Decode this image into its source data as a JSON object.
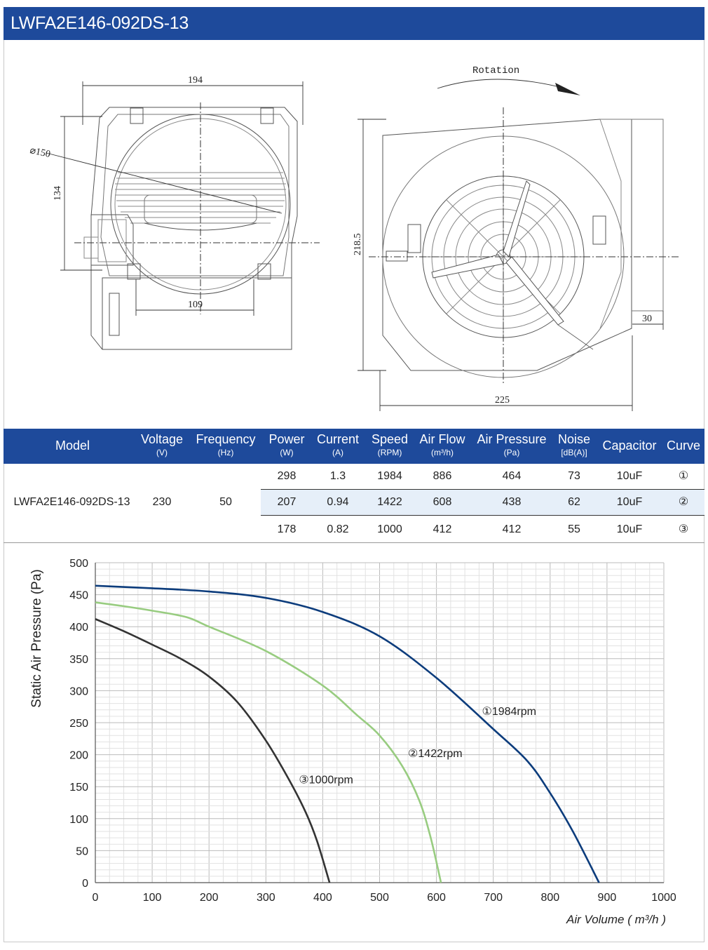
{
  "title": "LWFA2E146-092DS-13",
  "drawing": {
    "dims": {
      "width_top": "194",
      "diameter": "⌀150",
      "height_left": "134",
      "bottom_width": "109",
      "rotation": "Rotation",
      "height_right": "218.5",
      "outlet_depth": "30",
      "total_width": "225"
    }
  },
  "table": {
    "headers": [
      {
        "main": "Model",
        "sub": ""
      },
      {
        "main": "Voltage",
        "sub": "(V)"
      },
      {
        "main": "Frequency",
        "sub": "(Hz)"
      },
      {
        "main": "Power",
        "sub": "(W)"
      },
      {
        "main": "Current",
        "sub": "(A)"
      },
      {
        "main": "Speed",
        "sub": "(RPM)"
      },
      {
        "main": "Air Flow",
        "sub": "(m³/h)"
      },
      {
        "main": "Air Pressure",
        "sub": "(Pa)"
      },
      {
        "main": "Noise",
        "sub": "[dB(A)]"
      },
      {
        "main": "Capacitor",
        "sub": ""
      },
      {
        "main": "Curve",
        "sub": ""
      }
    ],
    "model": "LWFA2E146-092DS-13",
    "voltage": "230",
    "frequency": "50",
    "rows": [
      {
        "power": "298",
        "current": "1.3",
        "speed": "1984",
        "air_flow": "886",
        "air_pressure": "464",
        "noise": "73",
        "capacitor": "10uF",
        "curve": "①"
      },
      {
        "power": "207",
        "current": "0.94",
        "speed": "1422",
        "air_flow": "608",
        "air_pressure": "438",
        "noise": "62",
        "capacitor": "10uF",
        "curve": "②"
      },
      {
        "power": "178",
        "current": "0.82",
        "speed": "1000",
        "air_flow": "412",
        "air_pressure": "412",
        "noise": "55",
        "capacitor": "10uF",
        "curve": "③"
      }
    ]
  },
  "colors": {
    "header_blue": "#1e4a9b",
    "row_highlight": "#e6eff9",
    "curve1": "#0c3c7c",
    "curve2": "#98cc80",
    "curve3": "#333333"
  },
  "chart_data": {
    "type": "line",
    "xlabel": "Air Volume ( m³/h )",
    "ylabel": "Static Air Pressure  (Pa)",
    "xlim": [
      0,
      1000
    ],
    "ylim": [
      0,
      500
    ],
    "xticks": [
      0,
      100,
      200,
      300,
      400,
      500,
      600,
      700,
      800,
      900,
      1000
    ],
    "yticks": [
      0,
      50,
      100,
      150,
      200,
      250,
      300,
      350,
      400,
      450,
      500
    ],
    "grid": true,
    "series": [
      {
        "name": "①1984rpm",
        "color": "#0c3c7c",
        "x": [
          0,
          100,
          200,
          300,
          400,
          500,
          600,
          700,
          760,
          800,
          840,
          886
        ],
        "y": [
          464,
          460,
          455,
          445,
          423,
          385,
          320,
          240,
          190,
          140,
          80,
          0
        ]
      },
      {
        "name": "②1422rpm",
        "color": "#98cc80",
        "x": [
          0,
          50,
          100,
          160,
          200,
          300,
          400,
          460,
          500,
          540,
          570,
          590,
          608
        ],
        "y": [
          438,
          432,
          425,
          415,
          400,
          362,
          308,
          262,
          230,
          182,
          128,
          70,
          0
        ]
      },
      {
        "name": "③1000rpm",
        "color": "#333333",
        "x": [
          0,
          50,
          100,
          150,
          200,
          250,
          300,
          340,
          370,
          390,
          412
        ],
        "y": [
          412,
          393,
          372,
          350,
          322,
          282,
          222,
          162,
          110,
          65,
          0
        ]
      }
    ],
    "annotations": [
      {
        "text": "①1984rpm",
        "x": 680,
        "y": 262
      },
      {
        "text": "②1422rpm",
        "x": 550,
        "y": 196
      },
      {
        "text": "③1000rpm",
        "x": 358,
        "y": 155
      }
    ]
  }
}
